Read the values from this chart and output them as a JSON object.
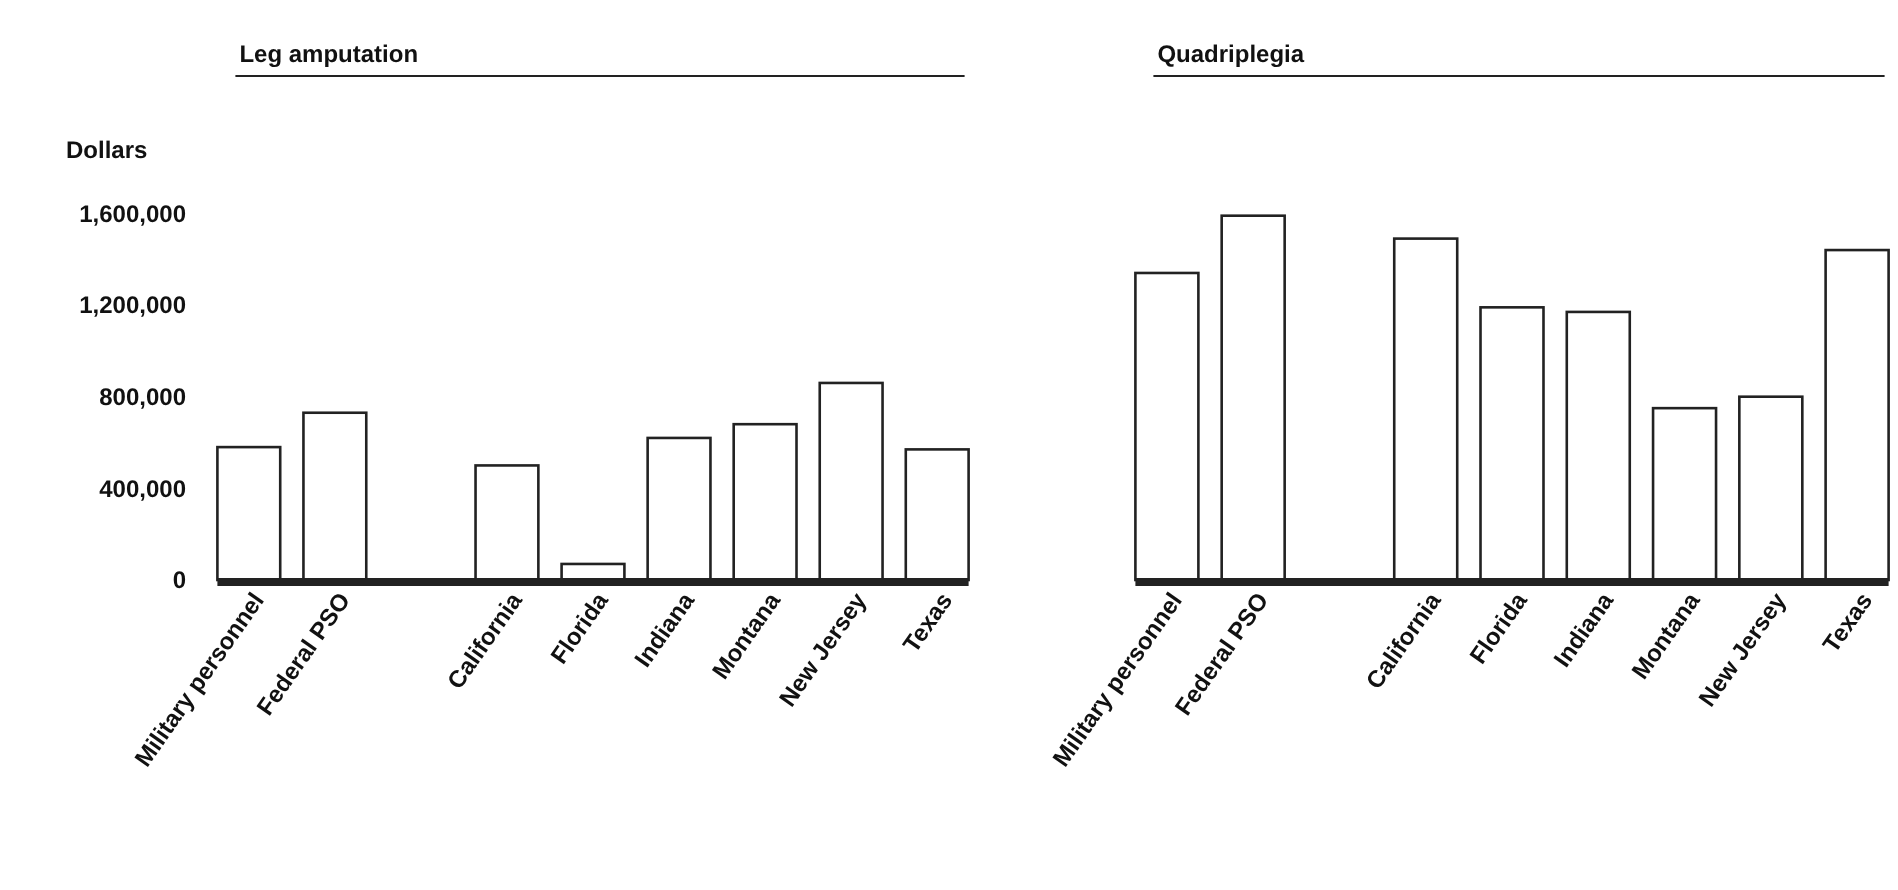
{
  "chart_data": [
    {
      "type": "bar",
      "title": "Leg amputation",
      "ylabel": "Dollars",
      "categories": [
        "Military personnel",
        "Federal PSO",
        null,
        "California",
        "Florida",
        "Indiana",
        "Montana",
        "New Jersey",
        "Texas"
      ],
      "series": [
        {
          "color": "#ffffff",
          "values": [
            580000,
            730000,
            null,
            500000,
            70000,
            620000,
            680000,
            860000,
            570000
          ]
        }
      ],
      "ylim": [
        0,
        1600000
      ],
      "yticks": [
        {
          "value": 0,
          "label": "0"
        },
        {
          "value": 400000,
          "label": "400,000"
        },
        {
          "value": 800000,
          "label": "800,000"
        },
        {
          "value": 1200000,
          "label": "1,200,000"
        },
        {
          "value": 1600000,
          "label": "1,600,000"
        }
      ],
      "grid": false
    },
    {
      "type": "bar",
      "title": "Quadriplegia",
      "categories": [
        "Military personnel",
        "Federal PSO",
        null,
        "California",
        "Florida",
        "Indiana",
        "Montana",
        "New Jersey",
        "Texas"
      ],
      "series": [
        {
          "color": "#ffffff",
          "values": [
            1340000,
            1590000,
            null,
            1490000,
            1190000,
            1170000,
            750000,
            800000,
            1440000
          ]
        }
      ],
      "ylim": [
        0,
        1600000
      ],
      "tick_labels": "x",
      "grid": false
    }
  ]
}
